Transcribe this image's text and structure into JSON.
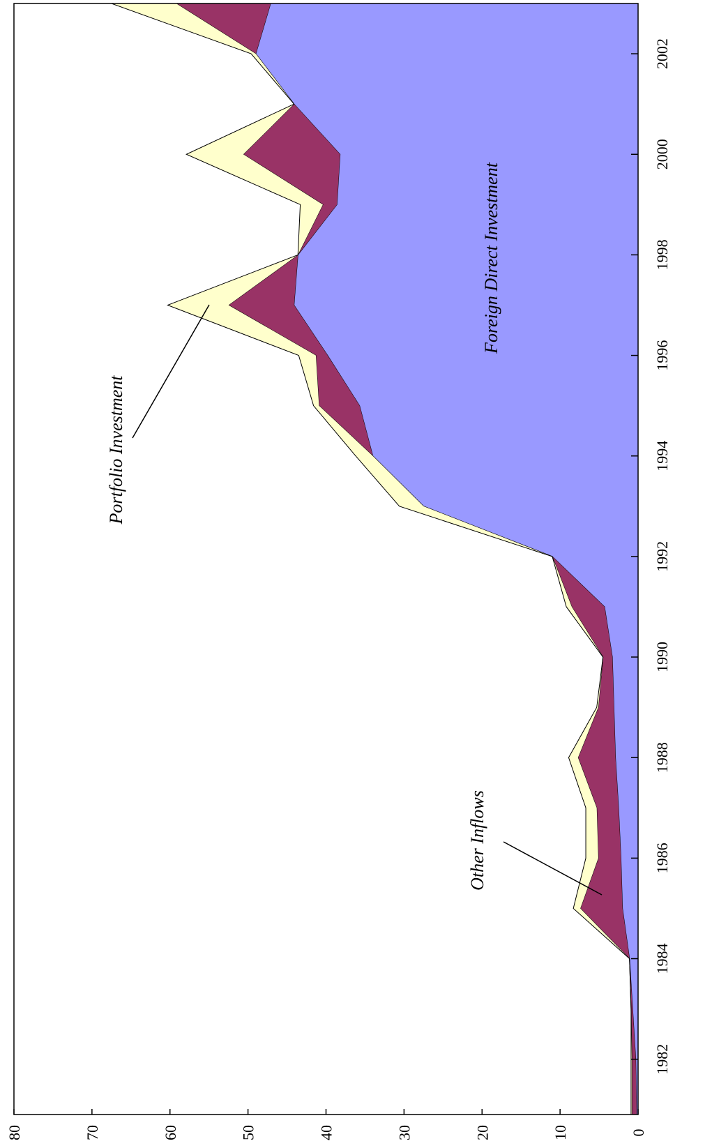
{
  "chart_data": {
    "type": "area",
    "x": [
      1980,
      1981,
      1982,
      1983,
      1984,
      1985,
      1986,
      1987,
      1988,
      1989,
      1990,
      1991,
      1992,
      1993,
      1994,
      1995,
      1996,
      1997,
      1998,
      1999,
      2000,
      2001,
      2002,
      2003
    ],
    "series": [
      {
        "name": "Foreign Direct Investment",
        "color": "#9999ff",
        "values": [
          0.2,
          0.2,
          0.3,
          0.7,
          1.1,
          2.0,
          2.2,
          2.5,
          2.9,
          3.1,
          3.3,
          4.3,
          11.0,
          27.5,
          34.0,
          35.7,
          39.8,
          44.1,
          43.6,
          38.6,
          38.2,
          44.1,
          49.0,
          47.1
        ]
      },
      {
        "name": "Other Inflows",
        "color": "#993366",
        "values": [
          0.6,
          0.6,
          0.5,
          0.2,
          0,
          5.4,
          2.9,
          2.8,
          4.8,
          2.0,
          1.2,
          4.2,
          0,
          0,
          0,
          5.2,
          1.5,
          8.4,
          0,
          1.8,
          12.4,
          0,
          0,
          12.1
        ]
      },
      {
        "name": "Portfolio Investment",
        "color": "#ffffcc",
        "values": [
          0.1,
          0.1,
          0.1,
          0,
          0,
          0.9,
          1.6,
          1.4,
          1.2,
          0.2,
          0,
          0.7,
          0,
          3.1,
          2.2,
          0.7,
          2.2,
          7.8,
          0,
          2.9,
          7.3,
          0,
          0.6,
          8.3
        ]
      }
    ],
    "xlim": [
      1980.9,
      2003
    ],
    "xticks": [
      1982,
      1984,
      1986,
      1988,
      1990,
      1992,
      1994,
      1996,
      1998,
      2000,
      2002
    ],
    "ylim": [
      0,
      80
    ],
    "yticks": [
      0,
      10,
      20,
      30,
      40,
      50,
      60,
      70,
      80
    ],
    "orientation": "rotated"
  }
}
